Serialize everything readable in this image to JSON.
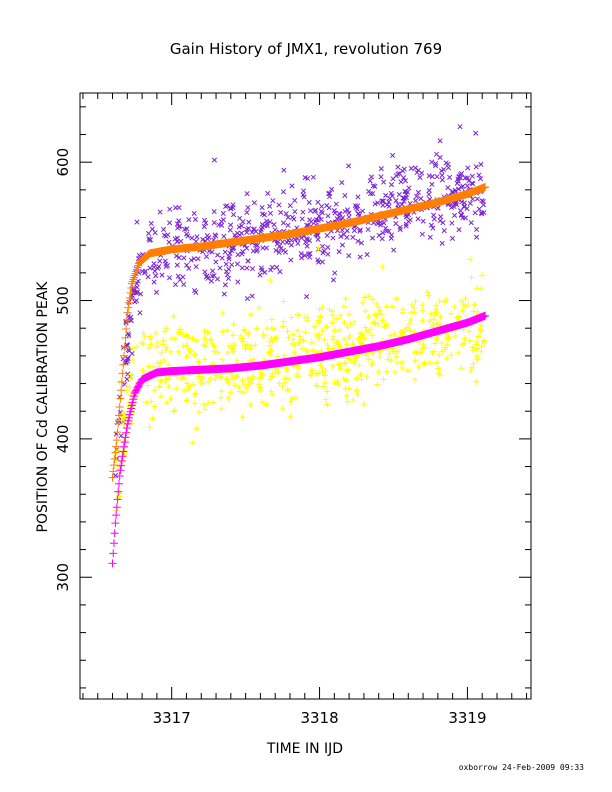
{
  "chart_data": {
    "type": "scatter",
    "title": "Gain History of JMX1, revolution 769",
    "xlabel": "TIME IN IJD",
    "ylabel": "POSITION OF Cd CALIBRATION PEAK",
    "xlim": [
      3316.38,
      3319.43
    ],
    "ylim": [
      212,
      650
    ],
    "xticks": [
      3317,
      3318,
      3319
    ],
    "xtick_labels": [
      "3317",
      "3318",
      "3319"
    ],
    "yticks": [
      300,
      400,
      500,
      600
    ],
    "ytick_labels": [
      "300",
      "400",
      "500",
      "600"
    ],
    "grid": false,
    "series": [
      {
        "marker": "x",
        "color": "#7a22d6",
        "base": [
          [
            3316.62,
            388
          ],
          [
            3316.75,
            510
          ],
          [
            3316.85,
            533
          ],
          [
            3317.0,
            538
          ],
          [
            3317.3,
            541
          ],
          [
            3317.6,
            545
          ],
          [
            3317.9,
            550
          ],
          [
            3318.2,
            555
          ],
          [
            3318.5,
            565
          ],
          [
            3318.8,
            578
          ],
          [
            3319.12,
            578
          ]
        ],
        "x_range": [
          3316.62,
          3319.12
        ],
        "scatter": 15
      },
      {
        "marker": "+",
        "color": "#ffff00",
        "base": [
          [
            3316.62,
            372
          ],
          [
            3316.72,
            430
          ],
          [
            3316.8,
            445
          ],
          [
            3317.0,
            452
          ],
          [
            3317.4,
            456
          ],
          [
            3317.8,
            460
          ],
          [
            3318.1,
            463
          ],
          [
            3318.5,
            472
          ],
          [
            3318.9,
            480
          ],
          [
            3319.12,
            480
          ]
        ],
        "x_range": [
          3316.62,
          3319.12
        ],
        "scatter": 17
      },
      {
        "marker": "+",
        "color": "#ff00ff",
        "points": [
          [
            3316.6,
            310
          ],
          [
            3316.62,
            340
          ],
          [
            3316.65,
            375
          ],
          [
            3316.7,
            410
          ],
          [
            3316.75,
            433
          ],
          [
            3316.8,
            443
          ],
          [
            3316.9,
            448
          ],
          [
            3317.0,
            449
          ],
          [
            3317.2,
            450
          ],
          [
            3317.4,
            451
          ],
          [
            3317.6,
            453
          ],
          [
            3317.8,
            456
          ],
          [
            3318.0,
            459
          ],
          [
            3318.2,
            463
          ],
          [
            3318.4,
            467
          ],
          [
            3318.6,
            472
          ],
          [
            3318.8,
            478
          ],
          [
            3319.0,
            484
          ],
          [
            3319.12,
            489
          ]
        ]
      },
      {
        "marker": "+",
        "color": "#ff7f00",
        "points": [
          [
            3316.6,
            372
          ],
          [
            3316.63,
            400
          ],
          [
            3316.67,
            450
          ],
          [
            3316.7,
            490
          ],
          [
            3316.73,
            512
          ],
          [
            3316.78,
            527
          ],
          [
            3316.85,
            534
          ],
          [
            3317.0,
            537
          ],
          [
            3317.2,
            539
          ],
          [
            3317.4,
            542
          ],
          [
            3317.6,
            545
          ],
          [
            3317.8,
            548
          ],
          [
            3318.0,
            552
          ],
          [
            3318.2,
            556
          ],
          [
            3318.4,
            561
          ],
          [
            3318.6,
            566
          ],
          [
            3318.8,
            571
          ],
          [
            3319.0,
            577
          ],
          [
            3319.12,
            582
          ]
        ]
      }
    ],
    "footer": "oxborrow 24-Feb-2009 09:33"
  }
}
